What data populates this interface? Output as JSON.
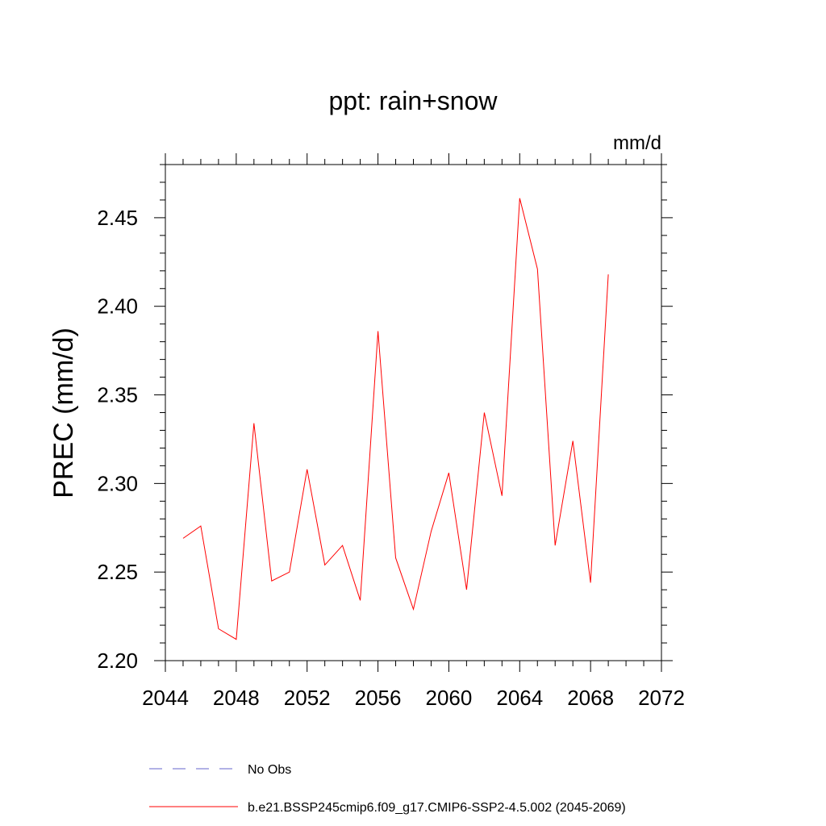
{
  "chart_data": {
    "type": "line",
    "title": "ppt: rain+snow",
    "units_label": "mm/d",
    "ylabel": "PREC  (mm/d)",
    "xlabel": "",
    "xlim": [
      2044,
      2072
    ],
    "ylim": [
      2.2,
      2.48
    ],
    "x_ticks": [
      2044,
      2048,
      2052,
      2056,
      2060,
      2064,
      2068,
      2072
    ],
    "x_tick_labels": [
      "2044",
      "2048",
      "2052",
      "2056",
      "2060",
      "2064",
      "2068",
      "2072"
    ],
    "y_ticks": [
      2.2,
      2.25,
      2.3,
      2.35,
      2.4,
      2.45
    ],
    "y_tick_labels": [
      "2.20",
      "2.25",
      "2.30",
      "2.35",
      "2.40",
      "2.45"
    ],
    "grid": false,
    "legend_placement": "bottom",
    "series": [
      {
        "name": "b.e21.BSSP245cmip6.f09_g17.CMIP6-SSP2-4.5.002 (2045-2069)",
        "color": "#ff0000",
        "style": "solid",
        "x": [
          2045,
          2046,
          2047,
          2048,
          2049,
          2050,
          2051,
          2052,
          2053,
          2054,
          2055,
          2056,
          2057,
          2058,
          2059,
          2060,
          2061,
          2062,
          2063,
          2064,
          2065,
          2066,
          2067,
          2068,
          2069
        ],
        "y": [
          2.269,
          2.276,
          2.218,
          2.212,
          2.334,
          2.245,
          2.25,
          2.308,
          2.254,
          2.265,
          2.234,
          2.386,
          2.258,
          2.229,
          2.273,
          2.306,
          2.24,
          2.34,
          2.293,
          2.461,
          2.421,
          2.265,
          2.324,
          2.244,
          2.418
        ]
      },
      {
        "name": "No Obs",
        "color": "#6666cc",
        "style": "dashed",
        "x": [],
        "y": []
      }
    ]
  }
}
